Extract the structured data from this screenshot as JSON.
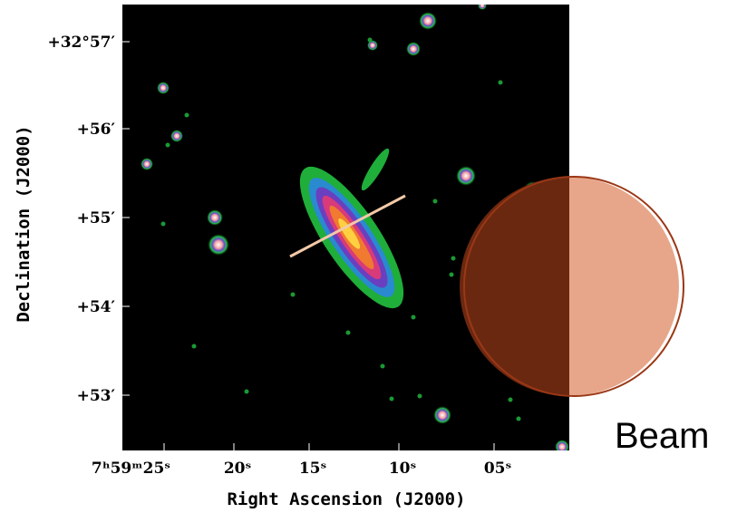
{
  "figure": {
    "x_axis": {
      "title": "Right Ascension (J2000)",
      "tick_labels": [
        "7ʰ59ᵐ25ˢ",
        "20ˢ",
        "15ˢ",
        "10ˢ",
        "05ˢ"
      ]
    },
    "y_axis": {
      "title": "Declination (J2000)",
      "tick_labels": [
        "+32°57′",
        "+56′",
        "+55′",
        "+54′",
        "+53′"
      ]
    },
    "beam_label": "Beam"
  }
}
